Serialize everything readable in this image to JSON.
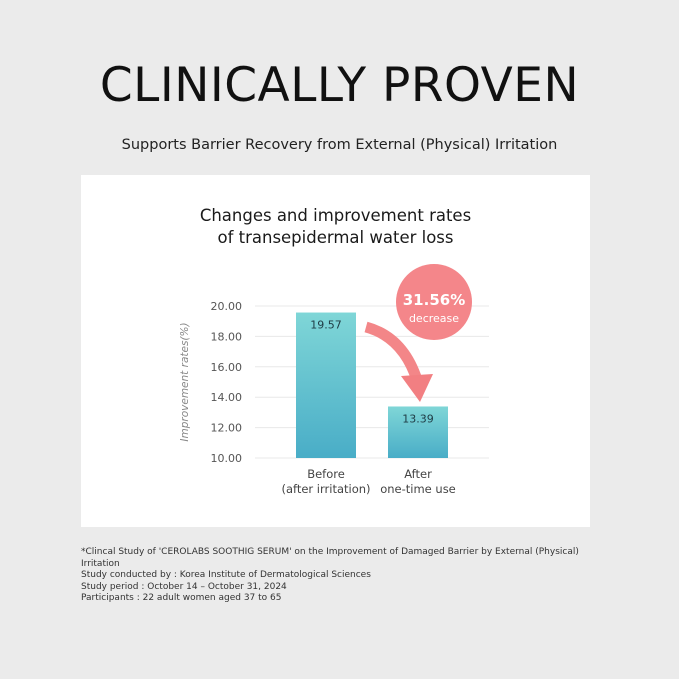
{
  "header": {
    "title": "CLINICALLY PROVEN",
    "subtitle": "Supports Barrier Recovery from External (Physical) Irritation"
  },
  "chart_data": {
    "type": "bar",
    "title_lines": [
      "Changes and improvement rates",
      "of transepidermal water loss"
    ],
    "categories": [
      [
        "Before",
        "(after irritation)"
      ],
      [
        "After",
        "one-time use"
      ]
    ],
    "values": [
      19.57,
      13.39
    ],
    "value_labels": [
      "19.57",
      "13.39"
    ],
    "ylabel": "Improvement rates(%)",
    "ylim": [
      10,
      20
    ],
    "yticks": [
      "20.00",
      "18.00",
      "16.00",
      "14.00",
      "12.00",
      "10.00"
    ],
    "ytick_values": [
      20,
      18,
      16,
      14,
      12,
      10
    ],
    "grid": true,
    "badge": {
      "value": "31.56%",
      "label": "decrease"
    },
    "colors": {
      "bar_top": "#7fd6d7",
      "bar_bottom": "#49adc7",
      "badge": "#f4868a",
      "arrow": "#f27f82",
      "grid": "#e8e8e8"
    }
  },
  "footnote": {
    "lines": [
      "*Clincal Study of 'CEROLABS SOOTHIG SERUM' on the Improvement of Damaged Barrier by External (Physical)",
      "Irritation",
      "Study conducted by : Korea Institute of Dermatological Sciences",
      "Study period : October 14 – October 31, 2024",
      "Participants : 22 adult women aged 37 to 65"
    ]
  }
}
